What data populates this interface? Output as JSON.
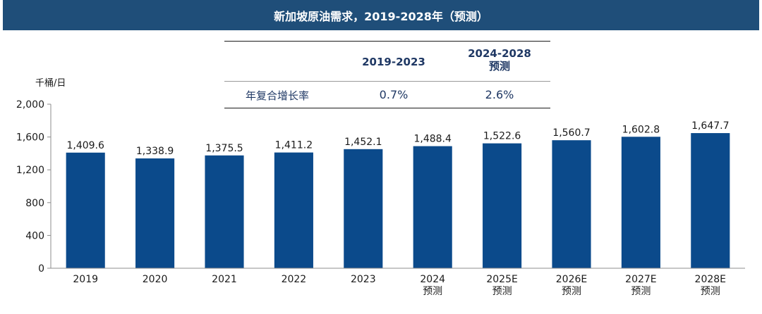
{
  "header": {
    "title": "新加坡原油需求，2019-2028年（预测）"
  },
  "cagr_table": {
    "col1_header": "2019-2023",
    "col2_header_line1": "2024-2028",
    "col2_header_line2": "预测",
    "row_label": "年复合增长率",
    "col1_value": "0.7%",
    "col2_value": "2.6%"
  },
  "chart_data": {
    "type": "bar",
    "unit_label": "千桶/日",
    "categories": [
      "2019",
      "2020",
      "2021",
      "2022",
      "2023",
      "2024\n预测",
      "2025E\n预测",
      "2026E\n预测",
      "2027E\n预测",
      "2028E\n预测"
    ],
    "values": [
      1409.6,
      1338.9,
      1375.5,
      1411.2,
      1452.1,
      1488.4,
      1522.6,
      1560.7,
      1602.8,
      1647.7
    ],
    "value_labels": [
      "1,409.6",
      "1,338.9",
      "1,375.5",
      "1,411.2",
      "1,452.1",
      "1,488.4",
      "1,522.6",
      "1,560.7",
      "1,602.8",
      "1,647.7"
    ],
    "yticks": [
      0,
      400,
      800,
      1200,
      1600,
      2000
    ],
    "ytick_labels": [
      "0",
      "400",
      "800",
      "1,200",
      "1,600",
      "2,000"
    ],
    "ylim": [
      0,
      2000
    ],
    "bar_color": "#0b4a8b",
    "grid": false
  }
}
